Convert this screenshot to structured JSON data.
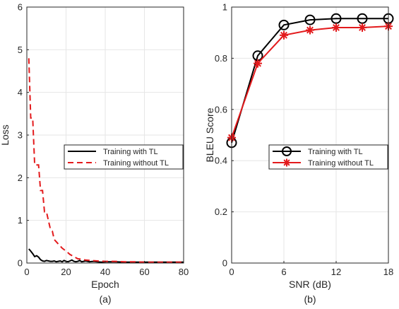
{
  "chart_data": [
    {
      "type": "line",
      "caption": "(a)",
      "xlabel": "Epoch",
      "ylabel": "Loss",
      "xlim": [
        0,
        80
      ],
      "ylim": [
        0,
        6
      ],
      "xticks": [
        0,
        20,
        40,
        60,
        80
      ],
      "yticks": [
        0,
        1,
        2,
        3,
        4,
        5,
        6
      ],
      "grid": true,
      "legend_position": "center-right",
      "series": [
        {
          "name": "Training with TL",
          "color": "#000000",
          "style": "solid",
          "x": [
            1,
            2,
            3,
            4,
            5,
            6,
            7,
            8,
            9,
            10,
            11,
            12,
            13,
            14,
            15,
            16,
            17,
            18,
            19,
            20,
            21,
            22,
            23,
            24,
            25,
            26,
            27,
            28,
            29,
            30,
            32,
            34,
            36,
            38,
            40,
            45,
            50,
            55,
            60,
            65,
            70,
            75,
            80
          ],
          "y": [
            0.33,
            0.28,
            0.22,
            0.15,
            0.17,
            0.14,
            0.08,
            0.05,
            0.04,
            0.06,
            0.05,
            0.04,
            0.04,
            0.05,
            0.03,
            0.04,
            0.05,
            0.03,
            0.06,
            0.04,
            0.03,
            0.05,
            0.07,
            0.04,
            0.03,
            0.04,
            0.06,
            0.03,
            0.04,
            0.05,
            0.03,
            0.04,
            0.03,
            0.02,
            0.03,
            0.03,
            0.02,
            0.02,
            0.02,
            0.02,
            0.02,
            0.02,
            0.02
          ]
        },
        {
          "name": "Training without TL",
          "color": "#e31a1c",
          "style": "dashed",
          "x": [
            1,
            2,
            3,
            4,
            5,
            6,
            7,
            8,
            9,
            10,
            11,
            12,
            13,
            14,
            15,
            16,
            18,
            20,
            22,
            24,
            26,
            28,
            30,
            33,
            36,
            40,
            45,
            50,
            55,
            60,
            70,
            80
          ],
          "y": [
            4.8,
            3.4,
            3.4,
            2.3,
            2.3,
            2.3,
            1.7,
            1.7,
            1.2,
            1.2,
            1.0,
            0.8,
            0.75,
            0.55,
            0.5,
            0.45,
            0.35,
            0.28,
            0.2,
            0.15,
            0.1,
            0.09,
            0.07,
            0.06,
            0.05,
            0.04,
            0.04,
            0.03,
            0.03,
            0.02,
            0.02,
            0.02
          ]
        }
      ]
    },
    {
      "type": "line",
      "caption": "(b)",
      "xlabel": "SNR (dB)",
      "ylabel": "BLEU Score",
      "xlim": [
        0,
        18
      ],
      "ylim": [
        0,
        1
      ],
      "xticks": [
        0,
        6,
        12,
        18
      ],
      "yticks": [
        0,
        0.2,
        0.4,
        0.6,
        0.8,
        1
      ],
      "ytick_labels": [
        "0",
        "0.2",
        "0.4",
        "0.6",
        "0.8",
        "1"
      ],
      "grid": true,
      "legend_position": "center-right",
      "series": [
        {
          "name": "Training with TL",
          "color": "#000000",
          "marker": "circle",
          "x": [
            0,
            3,
            6,
            9,
            12,
            15,
            18
          ],
          "y": [
            0.47,
            0.81,
            0.93,
            0.95,
            0.955,
            0.955,
            0.955
          ]
        },
        {
          "name": "Training without TL",
          "color": "#e31a1c",
          "marker": "asterisk",
          "x": [
            0,
            3,
            6,
            9,
            12,
            15,
            18
          ],
          "y": [
            0.49,
            0.78,
            0.89,
            0.91,
            0.92,
            0.92,
            0.925
          ]
        }
      ]
    }
  ]
}
